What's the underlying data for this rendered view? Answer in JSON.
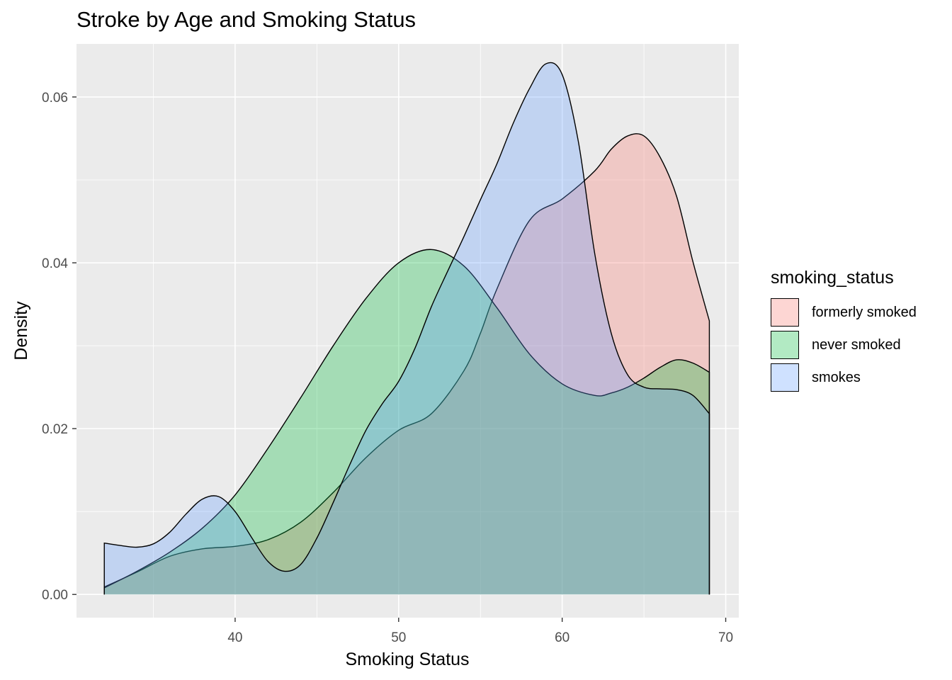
{
  "title": "Stroke by Age and Smoking Status",
  "chart_data": {
    "type": "area",
    "subtype": "density",
    "title": "Stroke by Age and Smoking Status",
    "xlabel": "Smoking Status",
    "ylabel": "Density",
    "xlim": [
      30.3,
      70.8
    ],
    "ylim": [
      -0.0028,
      0.0664
    ],
    "x_ticks": [
      40,
      50,
      60,
      70
    ],
    "y_ticks": [
      0.0,
      0.02,
      0.04,
      0.06
    ],
    "x_tick_labels": [
      "40",
      "50",
      "60",
      "70"
    ],
    "y_tick_labels": [
      "0.00",
      "0.02",
      "0.04",
      "0.06"
    ],
    "grid": true,
    "legend": {
      "title": "smoking_status",
      "position": "right",
      "items": [
        "formerly smoked",
        "never smoked",
        "smokes"
      ]
    },
    "fill_opacity": 0.3,
    "series": [
      {
        "name": "formerly smoked",
        "color": "#F8766D",
        "x": [
          32,
          34,
          36,
          38,
          40,
          42,
          44,
          46,
          48,
          50,
          52,
          54,
          55,
          56,
          58,
          60,
          62,
          63,
          64,
          65,
          66,
          67,
          68,
          69
        ],
        "y": [
          0.0009,
          0.0027,
          0.0046,
          0.0055,
          0.0058,
          0.0066,
          0.0087,
          0.0123,
          0.0165,
          0.0198,
          0.0218,
          0.027,
          0.0315,
          0.0368,
          0.0451,
          0.0477,
          0.0511,
          0.0537,
          0.0553,
          0.0553,
          0.0527,
          0.048,
          0.0401,
          0.033
        ]
      },
      {
        "name": "never smoked",
        "color": "#00BA38",
        "x": [
          32,
          34,
          36,
          38,
          40,
          42,
          44,
          46,
          48,
          50,
          52,
          54,
          56,
          58,
          60,
          62,
          63,
          64,
          65,
          66,
          67,
          68,
          69
        ],
        "y": [
          0.0008,
          0.0028,
          0.0051,
          0.008,
          0.012,
          0.0176,
          0.0237,
          0.03,
          0.0357,
          0.04,
          0.0416,
          0.0396,
          0.0346,
          0.029,
          0.0254,
          0.024,
          0.0243,
          0.025,
          0.0261,
          0.0274,
          0.0283,
          0.0279,
          0.0268
        ]
      },
      {
        "name": "smokes",
        "color": "#619CFF",
        "x": [
          32,
          33,
          34,
          35,
          36,
          37,
          38,
          39,
          40,
          41,
          42,
          43,
          44,
          45,
          46,
          47,
          48,
          49,
          50,
          51,
          52,
          53,
          54,
          55,
          56,
          57,
          58,
          59,
          60,
          61,
          62,
          63,
          64,
          65,
          66,
          67,
          68,
          69
        ],
        "y": [
          0.0062,
          0.0059,
          0.0057,
          0.0061,
          0.0075,
          0.0097,
          0.0115,
          0.0118,
          0.01,
          0.0069,
          0.004,
          0.0028,
          0.0036,
          0.0068,
          0.0111,
          0.0156,
          0.0198,
          0.023,
          0.0257,
          0.0297,
          0.0347,
          0.039,
          0.0432,
          0.0476,
          0.0519,
          0.0568,
          0.061,
          0.064,
          0.0627,
          0.0545,
          0.041,
          0.0315,
          0.0265,
          0.025,
          0.0248,
          0.0247,
          0.024,
          0.0218
        ]
      }
    ]
  }
}
